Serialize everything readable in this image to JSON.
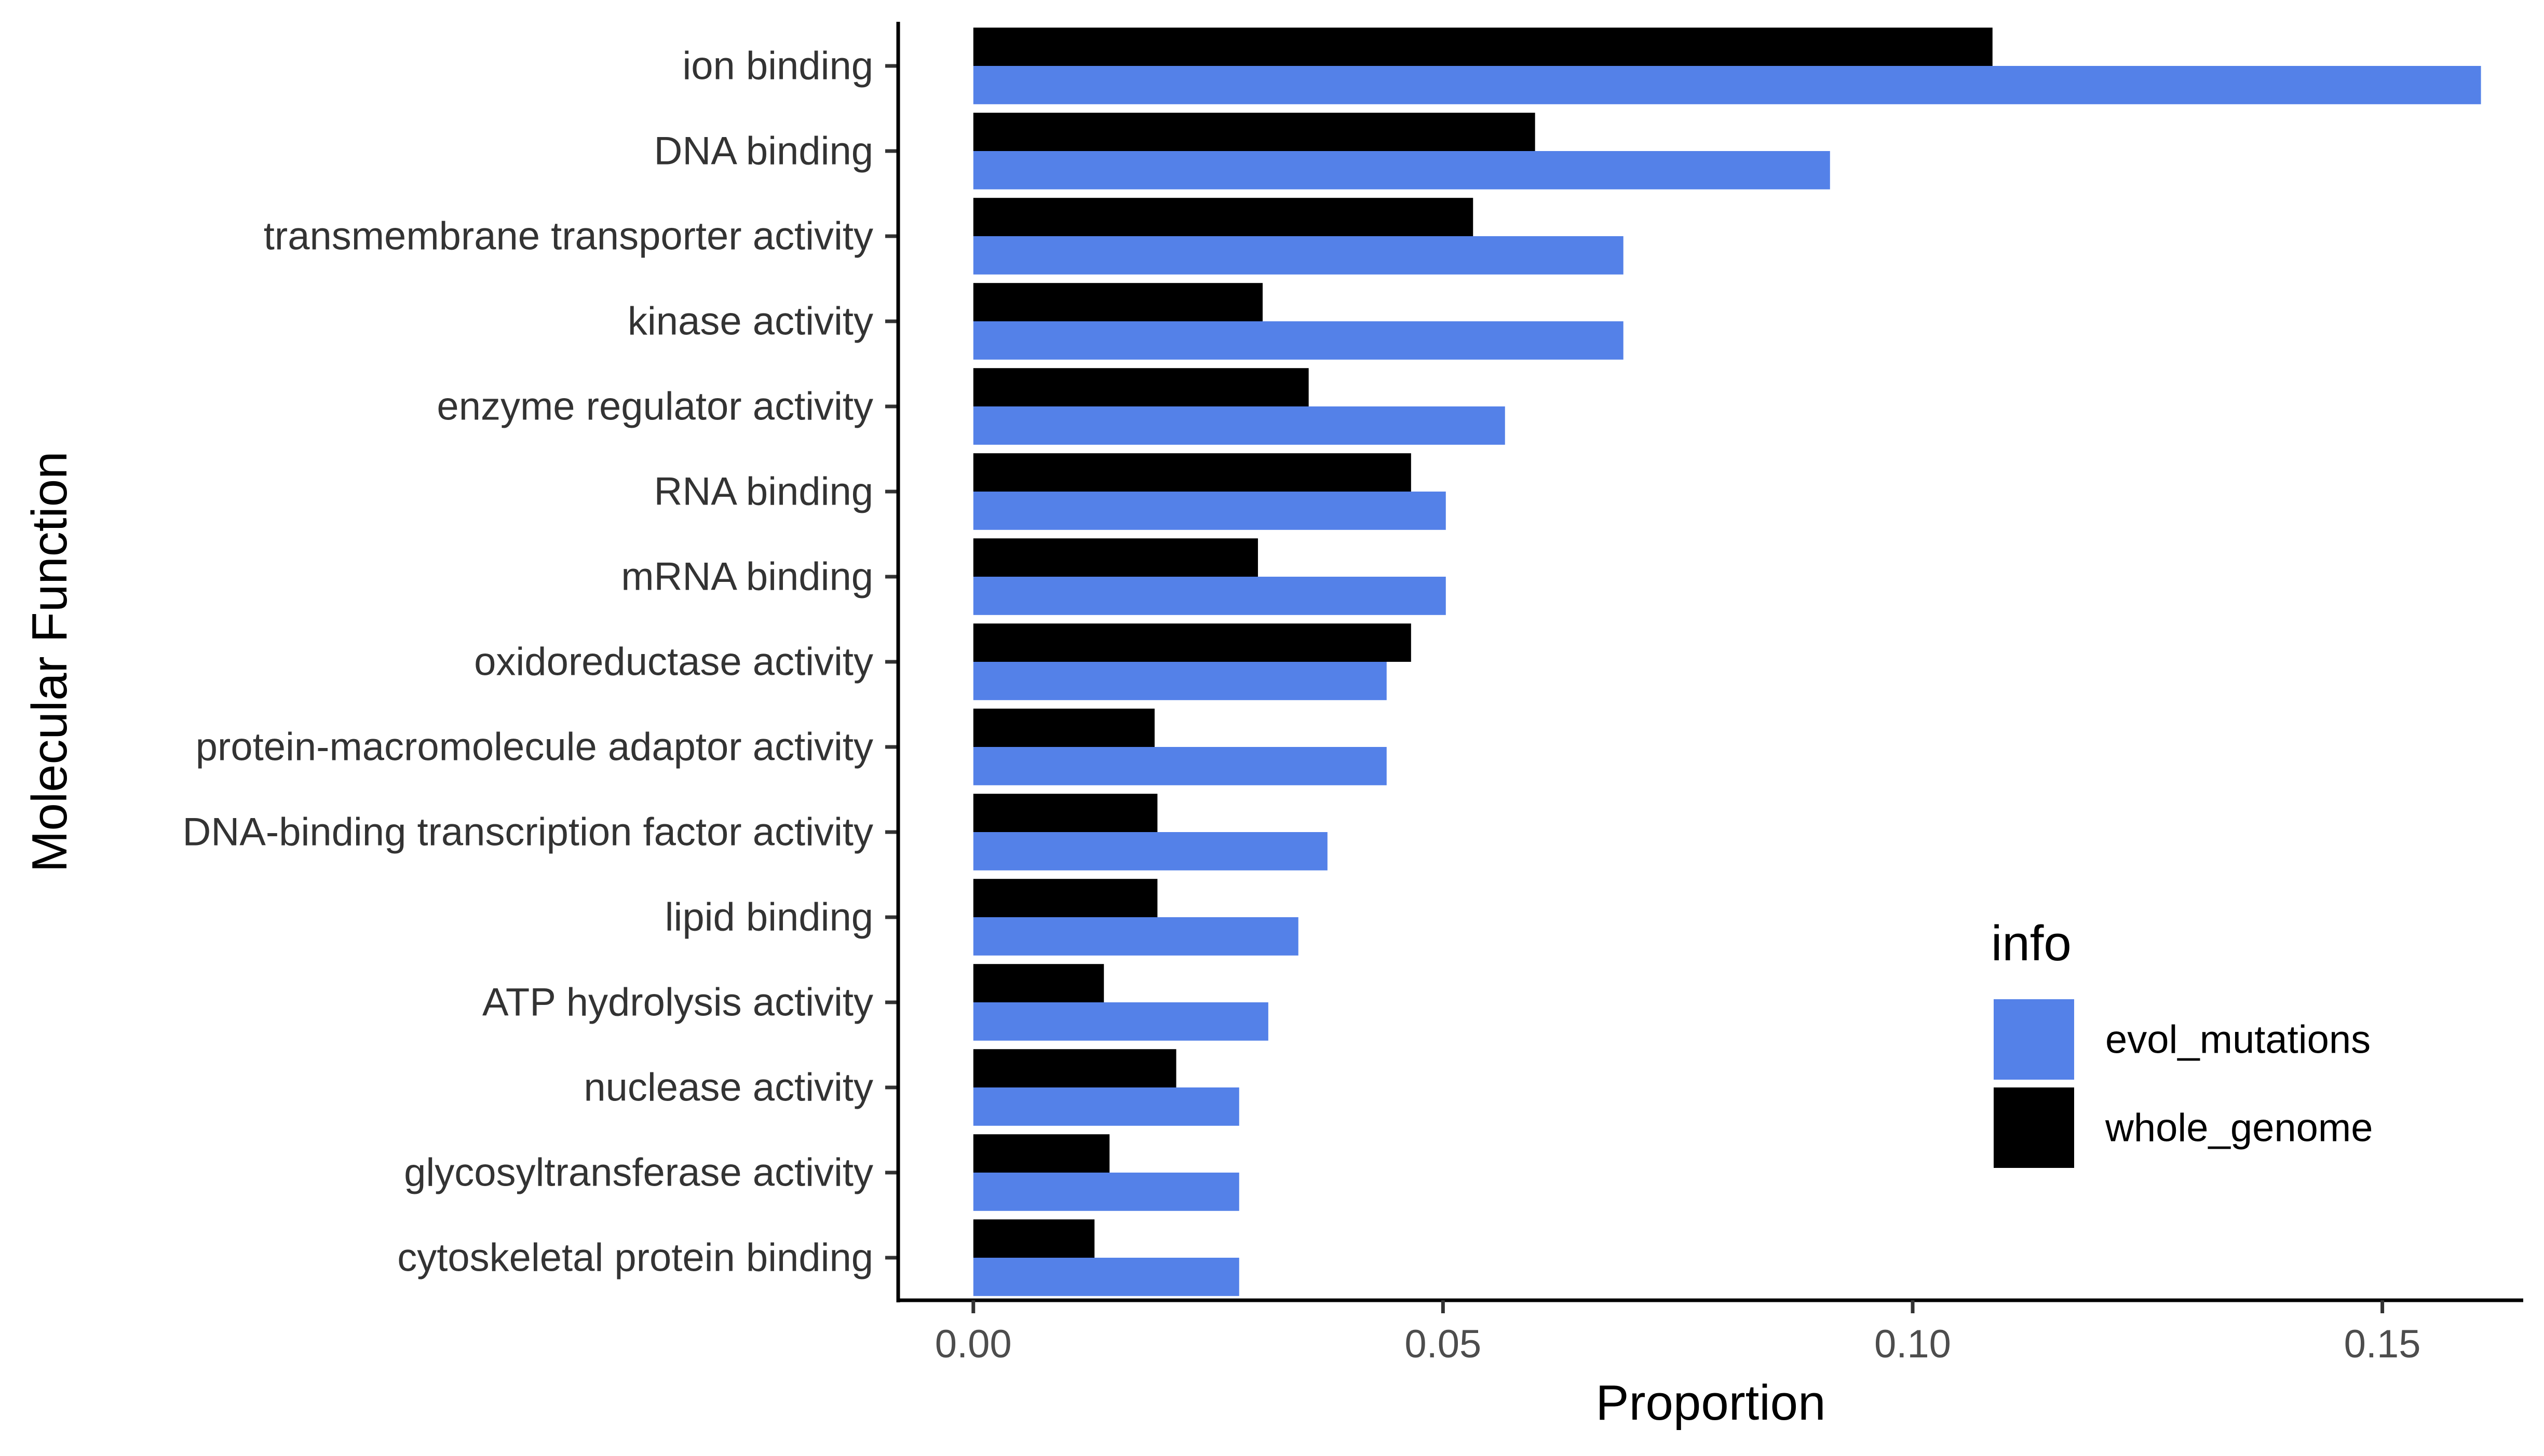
{
  "chart_data": {
    "type": "bar",
    "orientation": "horizontal",
    "categories": [
      "ion binding",
      "DNA binding",
      "transmembrane transporter activity",
      "kinase activity",
      "enzyme regulator activity",
      "RNA binding",
      "mRNA binding",
      "oxidoreductase activity",
      "protein-macromolecule adaptor activity",
      "DNA-binding transcription factor activity",
      "lipid binding",
      "ATP hydrolysis activity",
      "nuclease activity",
      "glycosyltransferase activity",
      "cytoskeletal protein binding"
    ],
    "series": [
      {
        "name": "whole_genome",
        "color": "#000000",
        "values": [
          0.1085,
          0.0598,
          0.0532,
          0.0308,
          0.0357,
          0.0466,
          0.0303,
          0.0466,
          0.0193,
          0.0196,
          0.0196,
          0.0139,
          0.0216,
          0.0145,
          0.0129
        ]
      },
      {
        "name": "evol_mutations",
        "color": "#5481E8",
        "values": [
          0.1605,
          0.0912,
          0.0692,
          0.0692,
          0.0566,
          0.0503,
          0.0503,
          0.044,
          0.044,
          0.0377,
          0.0346,
          0.0314,
          0.0283,
          0.0283,
          0.0283
        ]
      }
    ],
    "xlabel": "Proportion",
    "ylabel": "Molecular Function",
    "xlim": [
      -0.008,
      0.165
    ],
    "xticks": [
      0.0,
      0.05,
      0.1,
      0.15
    ],
    "xtick_labels": [
      "0.00",
      "0.05",
      "0.10",
      "0.15"
    ],
    "grid": false,
    "legend": {
      "title": "info",
      "position": "right",
      "entries": [
        {
          "label": "evol_mutations",
          "color": "#5481E8"
        },
        {
          "label": "whole_genome",
          "color": "#000000"
        }
      ]
    }
  }
}
